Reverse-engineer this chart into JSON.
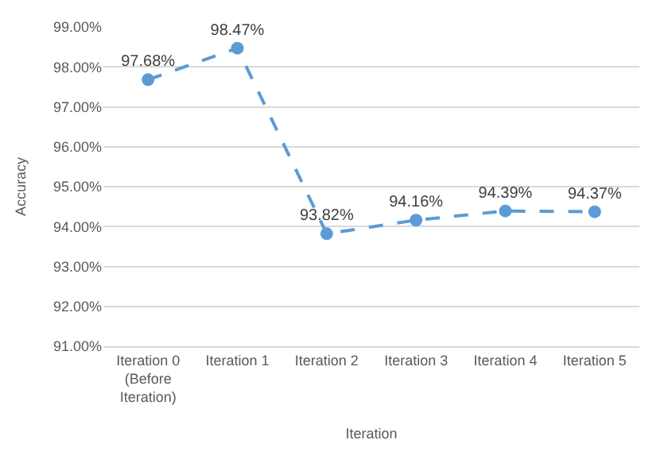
{
  "chart_data": {
    "type": "line",
    "xlabel": "Iteration",
    "ylabel": "Accuracy",
    "categories": [
      "Iteration 0 (Before Iteration)",
      "Iteration 1",
      "Iteration 2",
      "Iteration 3",
      "Iteration 4",
      "Iteration 5"
    ],
    "series": [
      {
        "color": "#5b9bd5",
        "values": [
          97.68,
          98.47,
          93.82,
          94.16,
          94.39,
          94.37
        ],
        "value_labels": [
          "97.68%",
          "98.47%",
          "93.82%",
          "94.16%",
          "94.39%",
          "94.37%"
        ]
      }
    ],
    "ylim": [
      91,
      99
    ],
    "yticks": [
      {
        "value": 91,
        "label": "91.00%"
      },
      {
        "value": 92,
        "label": "92.00%"
      },
      {
        "value": 93,
        "label": "93.00%"
      },
      {
        "value": 94,
        "label": "94.00%"
      },
      {
        "value": 95,
        "label": "95.00%"
      },
      {
        "value": 96,
        "label": "96.00%"
      },
      {
        "value": 97,
        "label": "97.00%"
      },
      {
        "value": 98,
        "label": "98.00%"
      },
      {
        "value": 99,
        "label": "99.00%"
      }
    ],
    "grid": "y",
    "legend": false,
    "marker": "circle",
    "line_style": "dashed"
  }
}
